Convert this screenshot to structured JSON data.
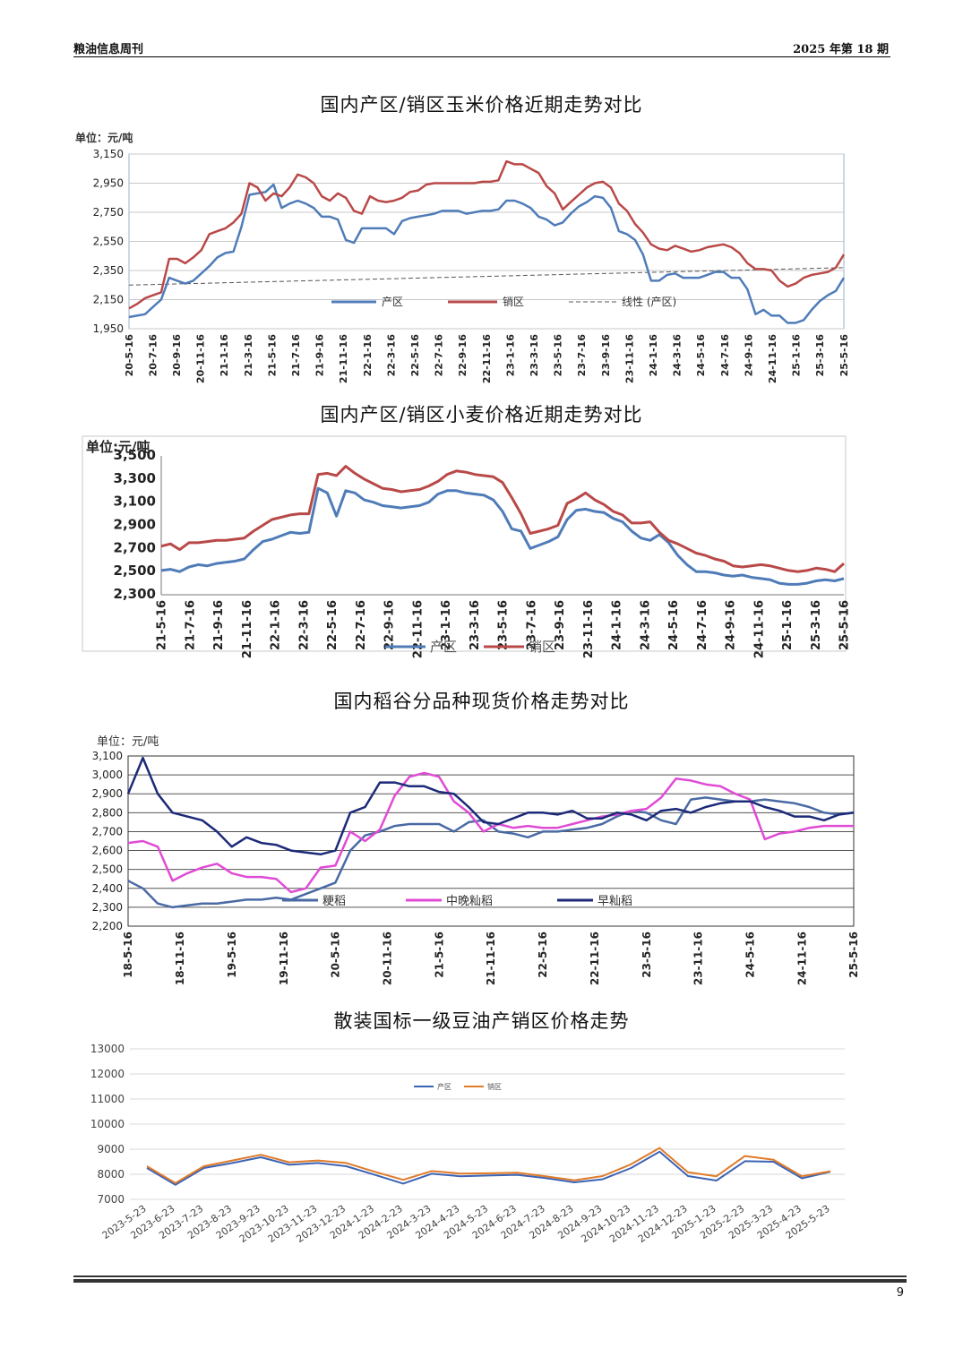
{
  "header": {
    "left": "粮油信息周刊",
    "right": "2025 年第 18 期"
  },
  "page_number": "9",
  "colors": {
    "chan": "#4f7cb8",
    "xiao": "#b94948",
    "geng": "#4a6aa5",
    "zhongwan": "#e04bd6",
    "zao": "#1c2a78",
    "oil_chan": "#3d64b5",
    "oil_xiao": "#e07b2a"
  },
  "chart_data": [
    {
      "type": "line",
      "title": "国内产区/销区玉米价格近期走势对比",
      "unit": "单位：元/吨",
      "ylim": [
        1950,
        3150
      ],
      "yticks": [
        "1,950",
        "2,150",
        "2,350",
        "2,550",
        "2,750",
        "2,950",
        "3,150"
      ],
      "xticks": [
        "20-5-16",
        "20-7-16",
        "20-9-16",
        "20-11-16",
        "21-1-16",
        "21-3-16",
        "21-5-16",
        "21-7-16",
        "21-9-16",
        "21-11-16",
        "22-1-16",
        "22-3-16",
        "22-5-16",
        "22-7-16",
        "22-9-16",
        "22-11-16",
        "23-1-16",
        "23-3-16",
        "23-5-16",
        "23-7-16",
        "23-9-16",
        "23-11-16",
        "24-1-16",
        "24-3-16",
        "24-5-16",
        "24-7-16",
        "24-9-16",
        "24-11-16",
        "25-1-16",
        "25-3-16",
        "25-5-16"
      ],
      "legend": [
        "产区",
        "销区",
        "线性 (产区)"
      ],
      "series": [
        {
          "name": "产区",
          "values": [
            2030,
            2040,
            2050,
            2100,
            2150,
            2300,
            2280,
            2260,
            2280,
            2330,
            2380,
            2440,
            2470,
            2480,
            2650,
            2870,
            2880,
            2890,
            2940,
            2780,
            2810,
            2830,
            2810,
            2780,
            2720,
            2720,
            2700,
            2560,
            2540,
            2640,
            2640,
            2640,
            2640,
            2600,
            2690,
            2710,
            2720,
            2730,
            2740,
            2760,
            2760,
            2760,
            2740,
            2750,
            2760,
            2760,
            2770,
            2830,
            2830,
            2810,
            2780,
            2720,
            2700,
            2660,
            2680,
            2740,
            2790,
            2820,
            2860,
            2850,
            2780,
            2620,
            2600,
            2560,
            2460,
            2280,
            2280,
            2320,
            2330,
            2300,
            2300,
            2300,
            2320,
            2340,
            2340,
            2300,
            2300,
            2220,
            2050,
            2080,
            2040,
            2040,
            1990,
            1990,
            2010,
            2080,
            2140,
            2180,
            2210,
            2300
          ]
        },
        {
          "name": "销区",
          "values": [
            2090,
            2120,
            2160,
            2180,
            2200,
            2430,
            2430,
            2400,
            2440,
            2490,
            2600,
            2620,
            2640,
            2680,
            2740,
            2950,
            2920,
            2830,
            2880,
            2860,
            2920,
            3010,
            2990,
            2950,
            2860,
            2830,
            2880,
            2850,
            2760,
            2740,
            2860,
            2830,
            2820,
            2830,
            2850,
            2890,
            2900,
            2940,
            2950,
            2950,
            2950,
            2950,
            2950,
            2950,
            2960,
            2960,
            2970,
            3100,
            3080,
            3080,
            3050,
            3020,
            2930,
            2880,
            2770,
            2820,
            2870,
            2920,
            2950,
            2960,
            2920,
            2810,
            2760,
            2670,
            2610,
            2530,
            2500,
            2490,
            2520,
            2500,
            2480,
            2490,
            2510,
            2520,
            2530,
            2510,
            2470,
            2400,
            2360,
            2360,
            2350,
            2280,
            2240,
            2260,
            2300,
            2320,
            2330,
            2340,
            2370,
            2460
          ]
        },
        {
          "name": "线性 (产区)",
          "values": [
            2250,
            2370
          ]
        }
      ]
    },
    {
      "type": "line",
      "title": "国内产区/销区小麦价格近期走势对比",
      "unit": "单位:元/吨",
      "ylim": [
        2300,
        3500
      ],
      "yticks": [
        "2,300",
        "2,500",
        "2,700",
        "2,900",
        "3,100",
        "3,300",
        "3,500"
      ],
      "xticks": [
        "21-5-16",
        "21-7-16",
        "21-9-16",
        "21-11-16",
        "22-1-16",
        "22-3-16",
        "22-5-16",
        "22-7-16",
        "22-9-16",
        "22-11-16",
        "23-1-16",
        "23-3-16",
        "23-5-16",
        "23-7-16",
        "23-9-16",
        "23-11-16",
        "24-1-16",
        "24-3-16",
        "24-5-16",
        "24-7-16",
        "24-9-16",
        "24-11-16",
        "25-1-16",
        "25-3-16",
        "25-5-16"
      ],
      "legend": [
        "产区",
        "销区"
      ],
      "series": [
        {
          "name": "产区",
          "values": [
            2510,
            2520,
            2500,
            2540,
            2560,
            2550,
            2570,
            2580,
            2590,
            2610,
            2690,
            2760,
            2780,
            2810,
            2840,
            2830,
            2840,
            3220,
            3180,
            2980,
            3200,
            3180,
            3120,
            3100,
            3070,
            3060,
            3050,
            3060,
            3070,
            3100,
            3170,
            3200,
            3200,
            3180,
            3170,
            3160,
            3120,
            3020,
            2870,
            2850,
            2700,
            2730,
            2760,
            2800,
            2950,
            3030,
            3040,
            3020,
            3010,
            2960,
            2930,
            2850,
            2790,
            2770,
            2820,
            2750,
            2640,
            2560,
            2500,
            2500,
            2490,
            2470,
            2460,
            2470,
            2450,
            2440,
            2430,
            2400,
            2390,
            2390,
            2400,
            2420,
            2430,
            2420,
            2440
          ]
        },
        {
          "name": "销区",
          "values": [
            2720,
            2740,
            2690,
            2750,
            2750,
            2760,
            2770,
            2770,
            2780,
            2790,
            2850,
            2900,
            2950,
            2970,
            2990,
            3000,
            3000,
            3340,
            3350,
            3330,
            3410,
            3350,
            3300,
            3260,
            3220,
            3210,
            3190,
            3200,
            3210,
            3240,
            3280,
            3340,
            3370,
            3360,
            3340,
            3330,
            3320,
            3270,
            3140,
            3000,
            2830,
            2850,
            2870,
            2900,
            3090,
            3130,
            3180,
            3120,
            3080,
            3020,
            2990,
            2920,
            2920,
            2930,
            2840,
            2770,
            2740,
            2700,
            2660,
            2640,
            2610,
            2590,
            2550,
            2540,
            2550,
            2560,
            2550,
            2530,
            2510,
            2500,
            2510,
            2530,
            2520,
            2500,
            2570
          ]
        }
      ]
    },
    {
      "type": "line",
      "title": "国内稻谷分品种现货价格走势对比",
      "unit": "单位：元/吨",
      "ylim": [
        2200,
        3100
      ],
      "yticks": [
        "2,200",
        "2,300",
        "2,400",
        "2,500",
        "2,600",
        "2,700",
        "2,800",
        "2,900",
        "3,000",
        "3,100"
      ],
      "xticks": [
        "18-5-16",
        "18-11-16",
        "19-5-16",
        "19-11-16",
        "20-5-16",
        "20-11-16",
        "21-5-16",
        "21-11-16",
        "22-5-16",
        "22-11-16",
        "23-5-16",
        "23-11-16",
        "24-5-16",
        "24-11-16",
        "25-5-16"
      ],
      "legend": [
        "粳稻",
        "中晚籼稻",
        "早籼稻"
      ],
      "series": [
        {
          "name": "粳稻",
          "values": [
            2440,
            2400,
            2320,
            2300,
            2310,
            2320,
            2320,
            2330,
            2340,
            2340,
            2350,
            2340,
            2370,
            2400,
            2430,
            2600,
            2680,
            2700,
            2730,
            2740,
            2740,
            2740,
            2700,
            2750,
            2760,
            2700,
            2690,
            2670,
            2700,
            2700,
            2710,
            2720,
            2740,
            2780,
            2810,
            2800,
            2760,
            2740,
            2870,
            2880,
            2870,
            2860,
            2860,
            2870,
            2860,
            2850,
            2830,
            2800,
            2790,
            2800
          ]
        },
        {
          "name": "中晚籼稻",
          "values": [
            2640,
            2650,
            2620,
            2440,
            2480,
            2510,
            2530,
            2480,
            2460,
            2460,
            2450,
            2380,
            2400,
            2510,
            2520,
            2700,
            2650,
            2710,
            2890,
            2990,
            3010,
            2990,
            2860,
            2800,
            2700,
            2740,
            2720,
            2730,
            2720,
            2720,
            2740,
            2760,
            2780,
            2790,
            2810,
            2820,
            2880,
            2980,
            2970,
            2950,
            2940,
            2900,
            2870,
            2660,
            2690,
            2700,
            2720,
            2730,
            2730,
            2730
          ]
        },
        {
          "name": "早籼稻",
          "values": [
            2900,
            3090,
            2900,
            2800,
            2780,
            2760,
            2700,
            2620,
            2670,
            2640,
            2630,
            2600,
            2590,
            2580,
            2600,
            2800,
            2830,
            2960,
            2960,
            2940,
            2940,
            2910,
            2900,
            2830,
            2750,
            2740,
            2770,
            2800,
            2800,
            2790,
            2810,
            2770,
            2770,
            2800,
            2790,
            2760,
            2810,
            2820,
            2800,
            2830,
            2850,
            2860,
            2860,
            2830,
            2810,
            2780,
            2780,
            2760,
            2790,
            2800
          ]
        }
      ]
    },
    {
      "type": "line",
      "title": "散装国标一级豆油产销区价格走势",
      "ylim": [
        7000,
        13000
      ],
      "yticks": [
        "7000",
        "8000",
        "9000",
        "10000",
        "11000",
        "12000",
        "13000"
      ],
      "categories": [
        "2023-5-23",
        "2023-6-23",
        "2023-7-23",
        "2023-8-23",
        "2023-9-23",
        "2023-10-23",
        "2023-11-23",
        "2023-12-23",
        "2024-1-23",
        "2024-2-23",
        "2024-3-23",
        "2024-4-23",
        "2024-5-23",
        "2024-6-23",
        "2024-7-23",
        "2024-8-23",
        "2024-9-23",
        "2024-10-23",
        "2024-11-23",
        "2024-12-23",
        "2025-1-23",
        "2025-2-23",
        "2025-3-23",
        "2025-4-23",
        "2025-5-23"
      ],
      "legend": [
        "产区",
        "销区"
      ],
      "series": [
        {
          "name": "产区",
          "values": [
            8250,
            7580,
            8250,
            8450,
            8680,
            8380,
            8450,
            8320,
            7980,
            7630,
            8020,
            7920,
            7950,
            7980,
            7850,
            7680,
            7800,
            8250,
            8900,
            7930,
            7750,
            8520,
            8500,
            7840,
            8100
          ]
        },
        {
          "name": "销区",
          "values": [
            8320,
            7650,
            8320,
            8550,
            8780,
            8480,
            8550,
            8450,
            8100,
            7780,
            8130,
            8030,
            8040,
            8060,
            7920,
            7760,
            7930,
            8400,
            9050,
            8080,
            7920,
            8730,
            8580,
            7920,
            8120
          ]
        }
      ]
    }
  ]
}
